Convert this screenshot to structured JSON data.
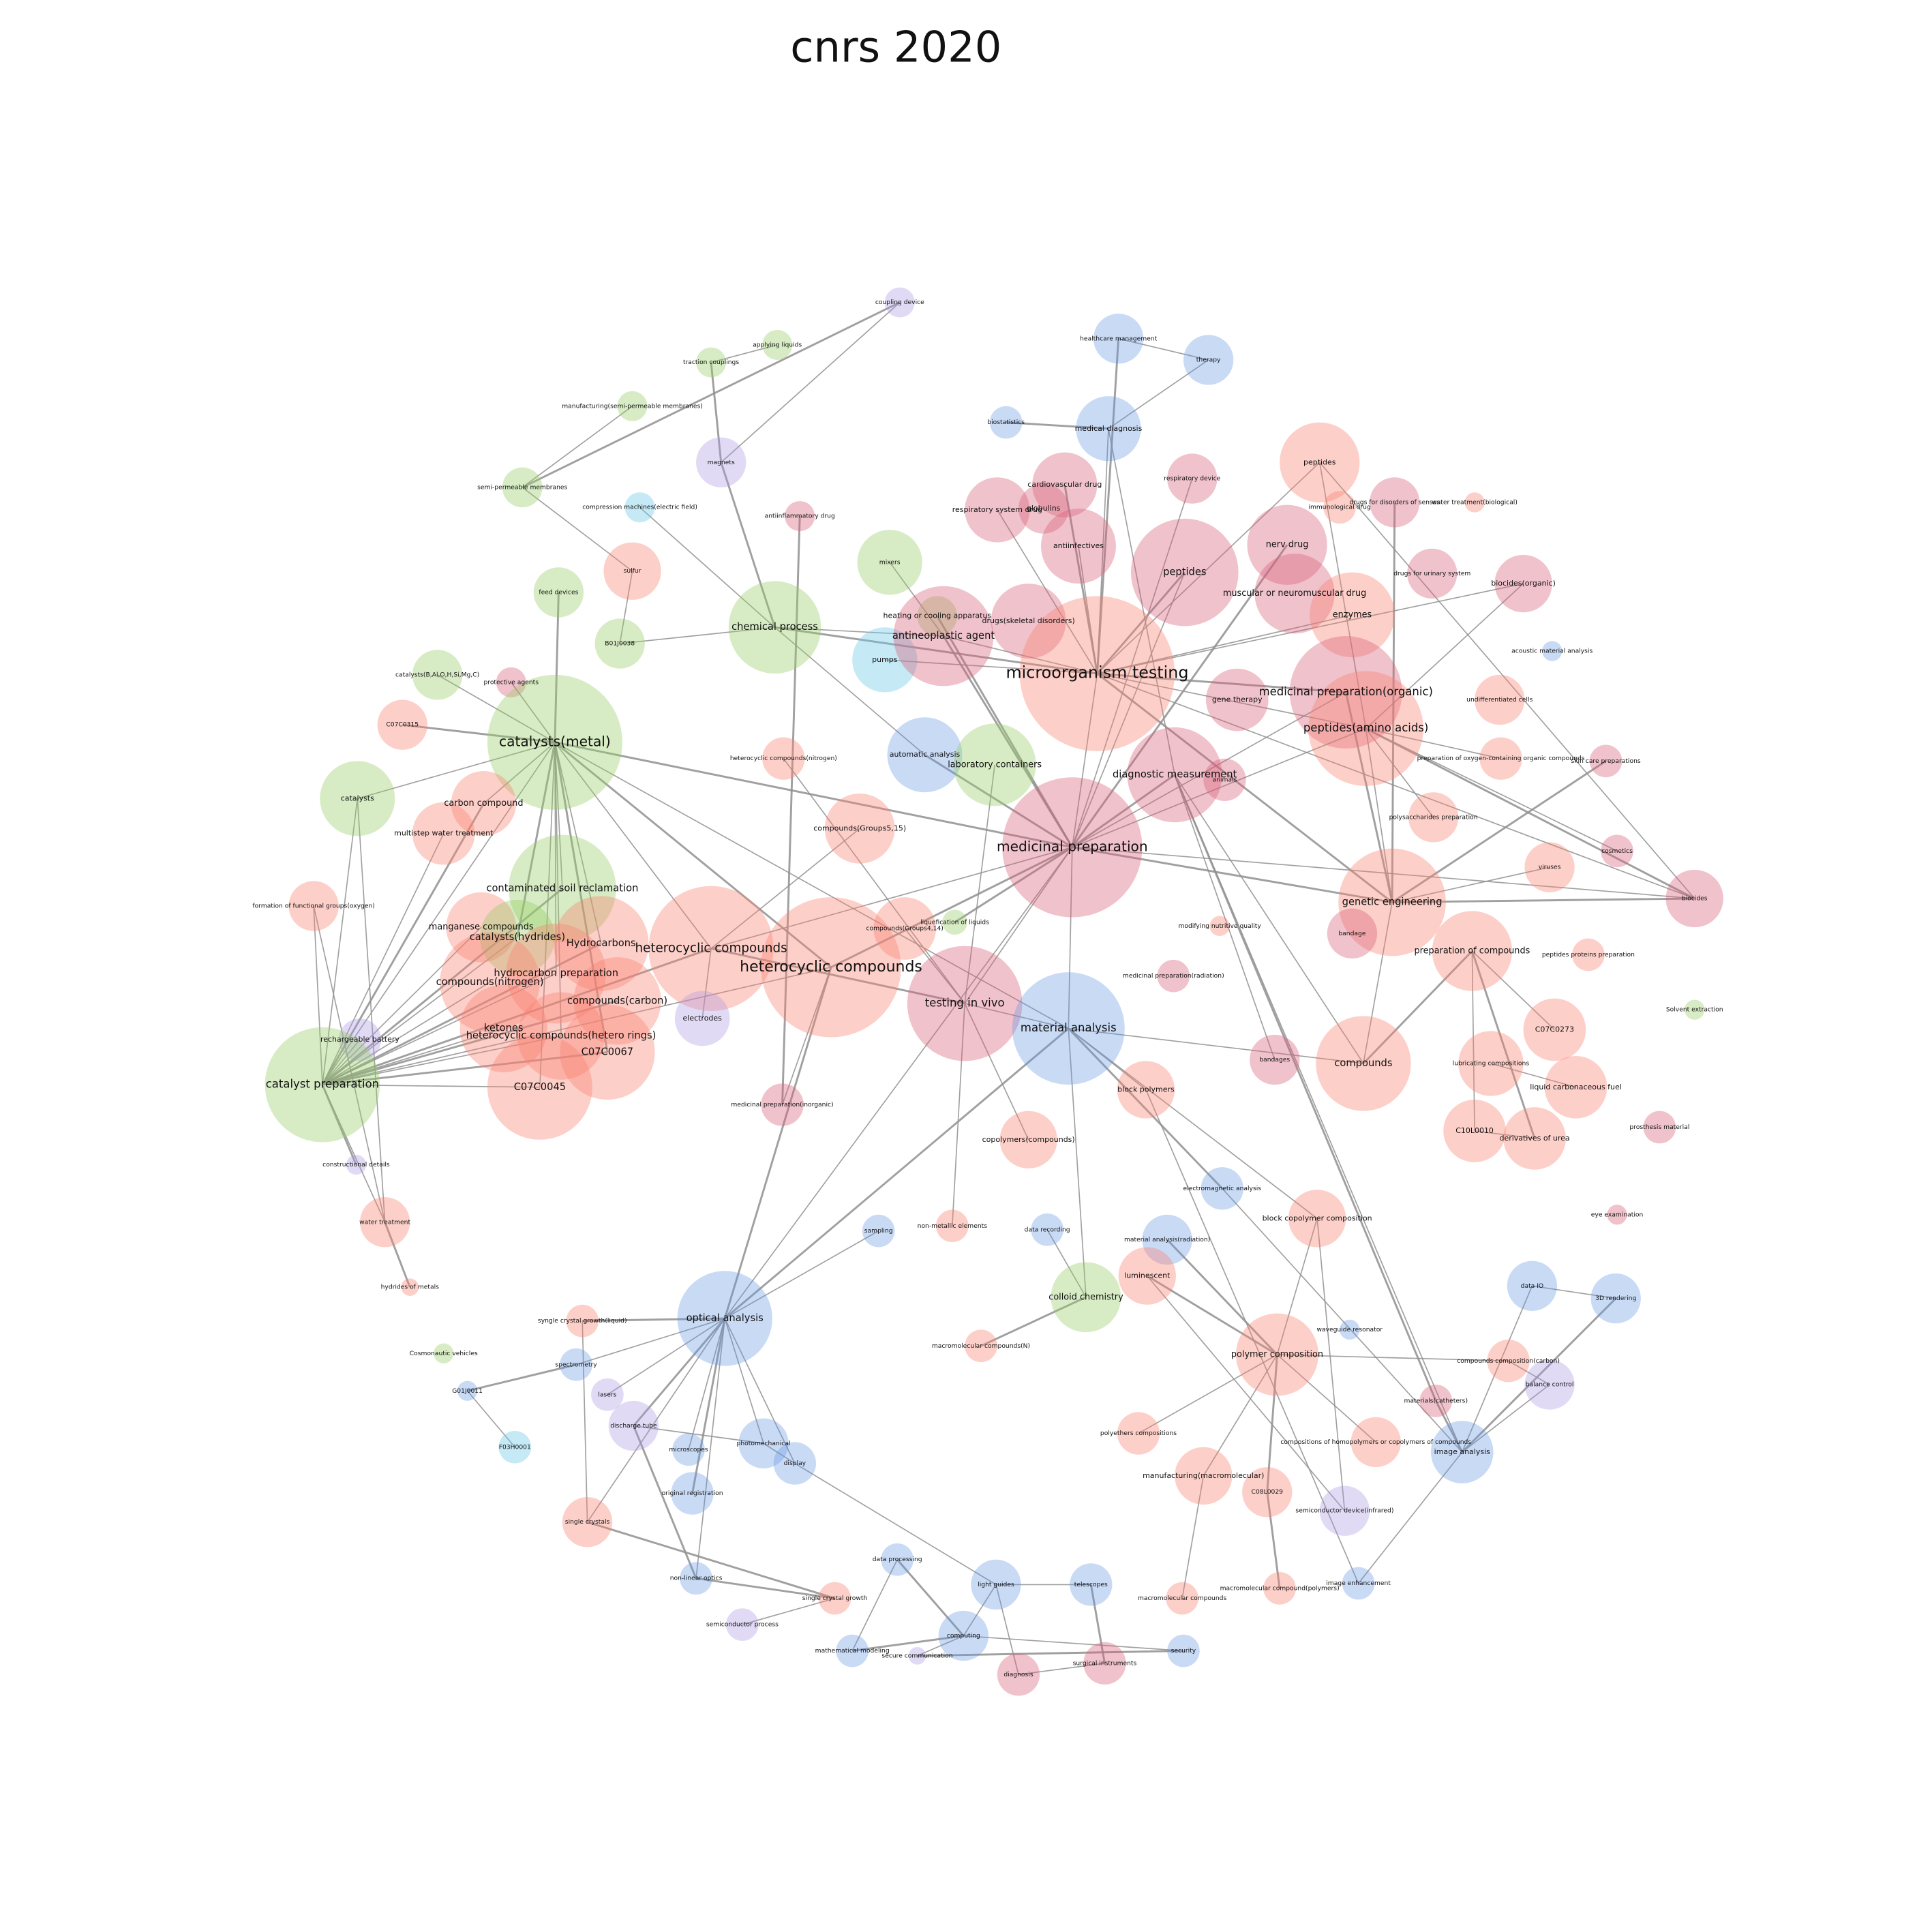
{
  "title": "cnrs 2020",
  "nodes": [
    {
      "label": "coupling device"
    },
    {
      "label": "applying liquids"
    },
    {
      "label": "traction couplings"
    },
    {
      "label": "manufacturing(semi-permeable membranes)"
    },
    {
      "label": "magnets"
    },
    {
      "label": "semi-permeable membranes"
    },
    {
      "label": "compression machines(electric field)"
    },
    {
      "label": "antiinflammatory drug"
    },
    {
      "label": "sulfur"
    },
    {
      "label": "feed devices"
    },
    {
      "label": "B01J0038"
    },
    {
      "label": "chemical process"
    },
    {
      "label": "mixers"
    },
    {
      "label": "heating or cooling apparatus"
    },
    {
      "label": "pumps"
    },
    {
      "label": "antineoplastic agent"
    },
    {
      "label": "healthcare management"
    },
    {
      "label": "therapy"
    },
    {
      "label": "biostatistics"
    },
    {
      "label": "medical diagnosis"
    },
    {
      "label": "cardiovascular drug"
    },
    {
      "label": "respiratory device"
    },
    {
      "label": "respiratory system drug"
    },
    {
      "label": "globulins"
    },
    {
      "label": "antiinfectives"
    },
    {
      "label": "peptides"
    },
    {
      "label": "immunological drug"
    },
    {
      "label": "drugs for disorders of senses"
    },
    {
      "label": "water treatment(biological)"
    },
    {
      "label": "nerv drug"
    },
    {
      "label": "peptides"
    },
    {
      "label": "muscular or neuromuscular drug"
    },
    {
      "label": "drugs for urinary system"
    },
    {
      "label": "biocides(organic)"
    },
    {
      "label": "enzymes"
    },
    {
      "label": "drugs(skeletal disorders)"
    },
    {
      "label": "microorganism testing"
    },
    {
      "label": "acoustic material analysis"
    },
    {
      "label": "gene therapy"
    },
    {
      "label": "medicinal preparation(organic)"
    },
    {
      "label": "undifferentiated cells"
    },
    {
      "label": "peptides(amino acids)"
    },
    {
      "label": "catalysts(B,Al,O,H,Si,Mg,C)"
    },
    {
      "label": "protective agents"
    },
    {
      "label": "C07C0315"
    },
    {
      "label": "catalysts(metal)"
    },
    {
      "label": "heterocyclic compounds(nitrogen)"
    },
    {
      "label": "automatic analysis"
    },
    {
      "label": "laboratory containers"
    },
    {
      "label": "diagnostic measurement"
    },
    {
      "label": "animals"
    },
    {
      "label": "preparation of oxygen-containing organic compounds"
    },
    {
      "label": "skin care preparations"
    },
    {
      "label": "catalysts"
    },
    {
      "label": "carbon compound"
    },
    {
      "label": "polysaccharides preparation"
    },
    {
      "label": "multistep water treatment"
    },
    {
      "label": "compounds(Groups5,15)"
    },
    {
      "label": "medicinal preparation"
    },
    {
      "label": "cosmetics"
    },
    {
      "label": "viruses"
    },
    {
      "label": "formation of functional groups(oxygen)"
    },
    {
      "label": "contaminated soil reclamation"
    },
    {
      "label": "genetic engineering"
    },
    {
      "label": "biocides"
    },
    {
      "label": "manganese compounds"
    },
    {
      "label": "catalysts(hydrides)"
    },
    {
      "label": "Hydrocarbons"
    },
    {
      "label": "heterocyclic compounds"
    },
    {
      "label": "compounds(Groups4,14)"
    },
    {
      "label": "liquefication of liquids"
    },
    {
      "label": "modifying nutritive quality"
    },
    {
      "label": "bandage"
    },
    {
      "label": "preparation of compounds"
    },
    {
      "label": "peptides proteins preparation"
    },
    {
      "label": "heterocyclic compounds"
    },
    {
      "label": "hydrocarbon preparation"
    },
    {
      "label": "compounds(nitrogen)"
    },
    {
      "label": "medicinal preparation(radiation)"
    },
    {
      "label": "compounds(carbon)"
    },
    {
      "label": "testing in vivo"
    },
    {
      "label": "Solvent extraction"
    },
    {
      "label": "electrodes"
    },
    {
      "label": "rechargeable battery"
    },
    {
      "label": "ketones"
    },
    {
      "label": "heterocyclic compounds(hetero rings)"
    },
    {
      "label": "material analysis"
    },
    {
      "label": "C07C0273"
    },
    {
      "label": "C07C0067"
    },
    {
      "label": "bandages"
    },
    {
      "label": "compounds"
    },
    {
      "label": "lubricating compositions"
    },
    {
      "label": "catalyst preparation"
    },
    {
      "label": "C07C0045"
    },
    {
      "label": "liquid carbonaceous fuel"
    },
    {
      "label": "block polymers"
    },
    {
      "label": "medicinal preparation(inorganic)"
    },
    {
      "label": "prosthesis material"
    },
    {
      "label": "C10L0010"
    },
    {
      "label": "derivatives of urea"
    },
    {
      "label": "copolymers(compounds)"
    },
    {
      "label": "constructional details"
    },
    {
      "label": "electromagnetic analysis"
    },
    {
      "label": "eye examination"
    },
    {
      "label": "water treatment"
    },
    {
      "label": "non-metallic elements"
    },
    {
      "label": "sampling"
    },
    {
      "label": "data recording"
    },
    {
      "label": "block copolymer composition"
    },
    {
      "label": "material analysis(radiation)"
    },
    {
      "label": "luminescent"
    },
    {
      "label": "data IO"
    },
    {
      "label": "3D rendering"
    },
    {
      "label": "colloid chemistry"
    },
    {
      "label": "hydrides of metals"
    },
    {
      "label": "optical analysis"
    },
    {
      "label": "syngle crystal growth(liquid)"
    },
    {
      "label": "waveguide resonator"
    },
    {
      "label": "macromolecular compounds(N)"
    },
    {
      "label": "polymer composition"
    },
    {
      "label": "Cosmonautic vehicles"
    },
    {
      "label": "spectrometry"
    },
    {
      "label": "compounds composition(carbon)"
    },
    {
      "label": "balance control"
    },
    {
      "label": "G01J0011"
    },
    {
      "label": "lasers"
    },
    {
      "label": "materials(catheters)"
    },
    {
      "label": "polyethers compositions"
    },
    {
      "label": "discharge tube"
    },
    {
      "label": "photomechanical"
    },
    {
      "label": "compositions of homopolymers or copolymers of compounds"
    },
    {
      "label": "F03H0001"
    },
    {
      "label": "microscopes"
    },
    {
      "label": "image analysis"
    },
    {
      "label": "display"
    },
    {
      "label": "manufacturing(macromolecular)"
    },
    {
      "label": "C08L0029"
    },
    {
      "label": "original registration"
    },
    {
      "label": "semiconductor device(infrared)"
    },
    {
      "label": "single crystals"
    },
    {
      "label": "data processing"
    },
    {
      "label": "non-linear optics"
    },
    {
      "label": "light guides"
    },
    {
      "label": "telescopes"
    },
    {
      "label": "image enhancement"
    },
    {
      "label": "macromolecular compound(polymers)"
    },
    {
      "label": "single crystal growth"
    },
    {
      "label": "macromolecular compounds"
    },
    {
      "label": "semiconductor process"
    },
    {
      "label": "computing"
    },
    {
      "label": "mathematical modeling"
    },
    {
      "label": "secure communication"
    },
    {
      "label": "security"
    },
    {
      "label": "surgical instruments"
    },
    {
      "label": "diagnosis"
    }
  ]
}
